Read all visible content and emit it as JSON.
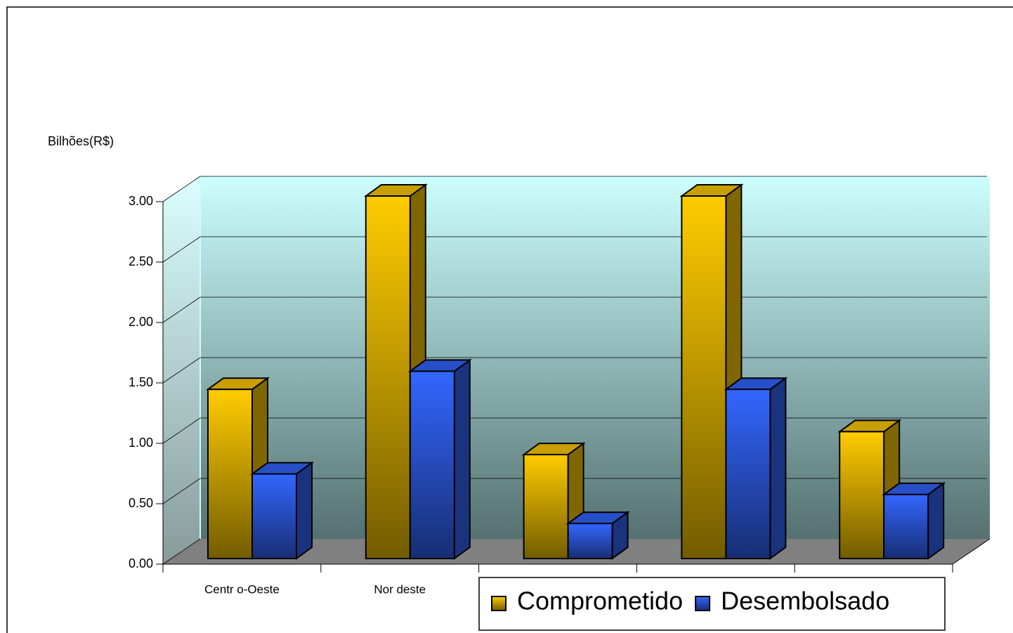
{
  "chart_data": {
    "type": "bar3d",
    "y_axis_label": "Bilhões(R$)",
    "categories": [
      "Centr o-Oeste",
      "Nor deste",
      null,
      null,
      null
    ],
    "series": [
      {
        "name": "Comprometido",
        "color": "#ffcc00",
        "values": [
          1.4,
          3.0,
          0.86,
          3.0,
          1.05
        ]
      },
      {
        "name": "Desembolsado",
        "color": "#3366ff",
        "values": [
          0.7,
          1.55,
          0.29,
          1.4,
          0.53
        ]
      }
    ],
    "ylim": [
      0,
      3
    ],
    "yticks": [
      {
        "value": 0,
        "label": "0.00"
      },
      {
        "value": 0.5,
        "label": "0.50"
      },
      {
        "value": 1,
        "label": "1.00"
      },
      {
        "value": 1.5,
        "label": "1.50"
      },
      {
        "value": 2,
        "label": "2.00"
      },
      {
        "value": 2.5,
        "label": "2.50"
      },
      {
        "value": 3,
        "label": "3.00"
      }
    ],
    "grid": true,
    "legend": "bottom"
  }
}
